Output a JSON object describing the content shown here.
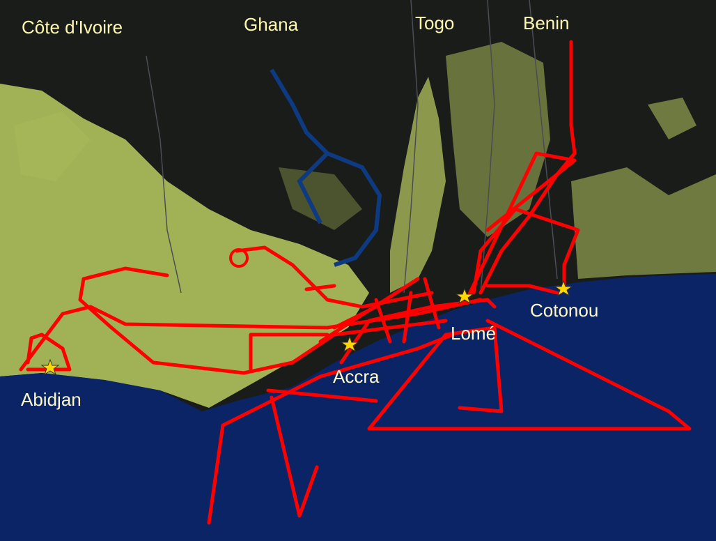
{
  "colors": {
    "ocean": "#0b2466",
    "land_dark": "#1c1e1c",
    "vegetation": "#a9b95a",
    "track": "#ff0000",
    "star": "#ffd700",
    "label": "#fff8b0",
    "lake": "#0d3a80"
  },
  "countries": [
    {
      "name": "Côte d'Ivoire"
    },
    {
      "name": "Ghana"
    },
    {
      "name": "Togo"
    },
    {
      "name": "Benin"
    }
  ],
  "cities": [
    {
      "name": "Abidjan",
      "icon": "star-icon"
    },
    {
      "name": "Accra",
      "icon": "star-icon"
    },
    {
      "name": "Lomé",
      "icon": "star-icon"
    },
    {
      "name": "Cotonou",
      "icon": "star-icon"
    }
  ]
}
